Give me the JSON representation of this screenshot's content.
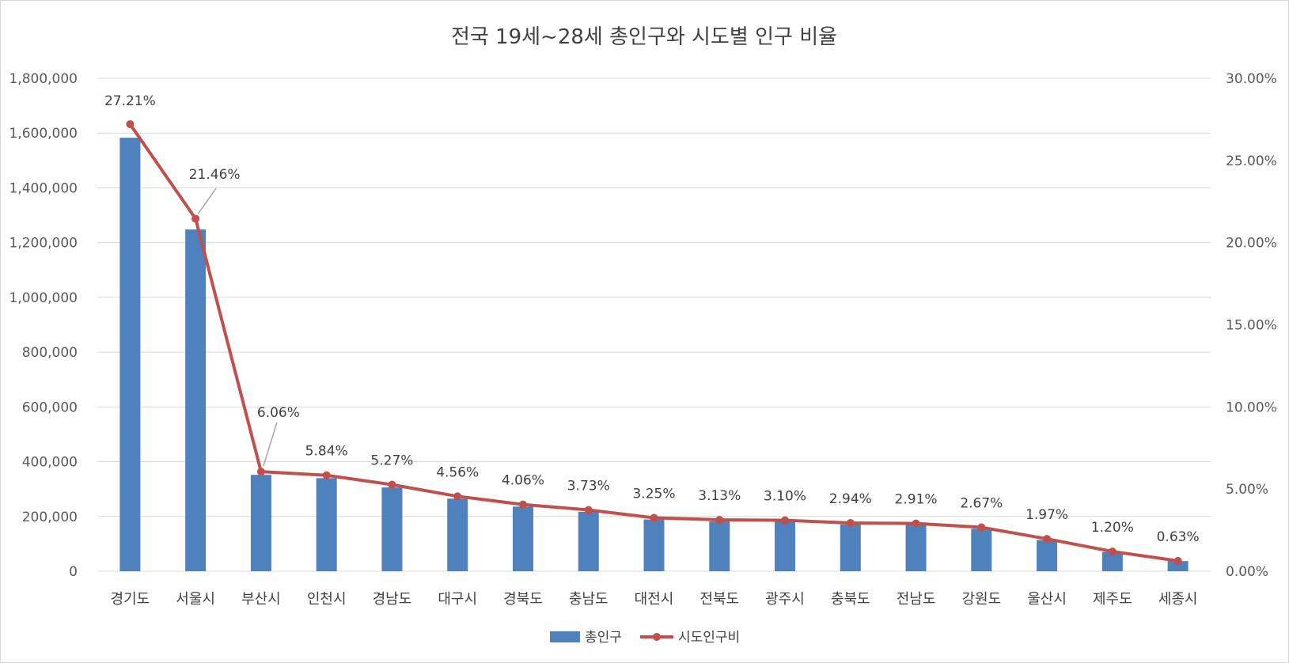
{
  "chart_data": {
    "type": "bar",
    "title": "전국 19세~28세 총인구와 시도별 인구 비율",
    "categories": [
      "경기도",
      "서울시",
      "부산시",
      "인천시",
      "경남도",
      "대구시",
      "경북도",
      "충남도",
      "대전시",
      "전북도",
      "광주시",
      "충북도",
      "전남도",
      "강원도",
      "울산시",
      "제주도",
      "세종시"
    ],
    "series": [
      {
        "name": "총인구",
        "kind": "bar",
        "axis": "left",
        "color": "#4f81bd",
        "values": [
          1583000,
          1248000,
          352000,
          340000,
          306000,
          265000,
          236000,
          217000,
          189000,
          182000,
          181000,
          171000,
          169000,
          155000,
          114000,
          70000,
          37000
        ]
      },
      {
        "name": "시도인구비",
        "kind": "line",
        "axis": "right",
        "color": "#c0504d",
        "values": [
          27.21,
          21.46,
          6.06,
          5.84,
          5.27,
          4.56,
          4.06,
          3.73,
          3.25,
          3.13,
          3.1,
          2.94,
          2.91,
          2.67,
          1.97,
          1.2,
          0.63
        ],
        "labels": [
          "27.21%",
          "21.46%",
          "6.06%",
          "5.84%",
          "5.27%",
          "4.56%",
          "4.06%",
          "3.73%",
          "3.25%",
          "3.13%",
          "3.10%",
          "2.94%",
          "2.91%",
          "2.67%",
          "1.97%",
          "1.20%",
          "0.63%"
        ]
      }
    ],
    "y_left": {
      "min": 0,
      "max": 1800000,
      "step": 200000,
      "tick_labels": [
        "0",
        "200,000",
        "400,000",
        "600,000",
        "800,000",
        "1,000,000",
        "1,200,000",
        "1,400,000",
        "1,600,000",
        "1,800,000"
      ]
    },
    "y_right": {
      "min": 0,
      "max": 30,
      "step": 5,
      "tick_labels": [
        "0.00%",
        "5.00%",
        "10.00%",
        "15.00%",
        "20.00%",
        "25.00%",
        "30.00%"
      ]
    },
    "grid": true,
    "legend_position": "bottom",
    "gridline_color": "#d9d9d9"
  }
}
